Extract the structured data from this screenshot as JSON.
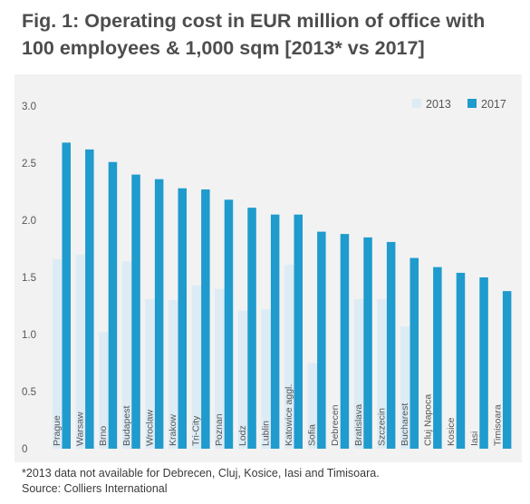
{
  "title": "Fig. 1: Operating cost in EUR million of office with 100 employees & 1,000 sqm [2013* vs 2017]",
  "footnote": "*2013 data not available for Debrecen, Cluj, Kosice, Iasi and Timisoara.",
  "source": "Source: Colliers International",
  "colors": {
    "s2013": "#ddebf4",
    "s2017": "#1f9bcd",
    "axis_text": "#555555",
    "background": "#f2f2f2"
  },
  "chart_data": {
    "type": "bar",
    "title": "Fig. 1: Operating cost in EUR million of office with 100 employees & 1,000 sqm [2013* vs 2017]",
    "xlabel": "",
    "ylabel": "",
    "ylim": [
      0,
      3.0
    ],
    "yticks": [
      "0",
      "0.5",
      "1.0",
      "1.5",
      "2.0",
      "2.5",
      "3.0"
    ],
    "grid": false,
    "legend": "top-right",
    "categories": [
      "Prague",
      "Warsaw",
      "Brno",
      "Budapest",
      "Wroclaw",
      "Krakow",
      "Tri-City",
      "Poznan",
      "Lodz",
      "Lublin",
      "Katowice aggl.",
      "Sofia",
      "Debrecen",
      "Bratislava",
      "Szczecin",
      "Bucharest",
      "Cluj Napoca",
      "Kosice",
      "Iasi",
      "Timisoara"
    ],
    "series": [
      {
        "name": "2013",
        "values": [
          1.66,
          1.7,
          1.02,
          1.64,
          1.31,
          1.3,
          1.43,
          1.4,
          1.21,
          1.22,
          1.61,
          0.75,
          null,
          1.31,
          1.31,
          1.07,
          null,
          null,
          null,
          null
        ]
      },
      {
        "name": "2017",
        "values": [
          2.68,
          2.62,
          2.51,
          2.4,
          2.36,
          2.28,
          2.27,
          2.18,
          2.11,
          2.05,
          2.05,
          1.9,
          1.88,
          1.85,
          1.81,
          1.67,
          1.59,
          1.54,
          1.5,
          1.38
        ]
      }
    ]
  }
}
